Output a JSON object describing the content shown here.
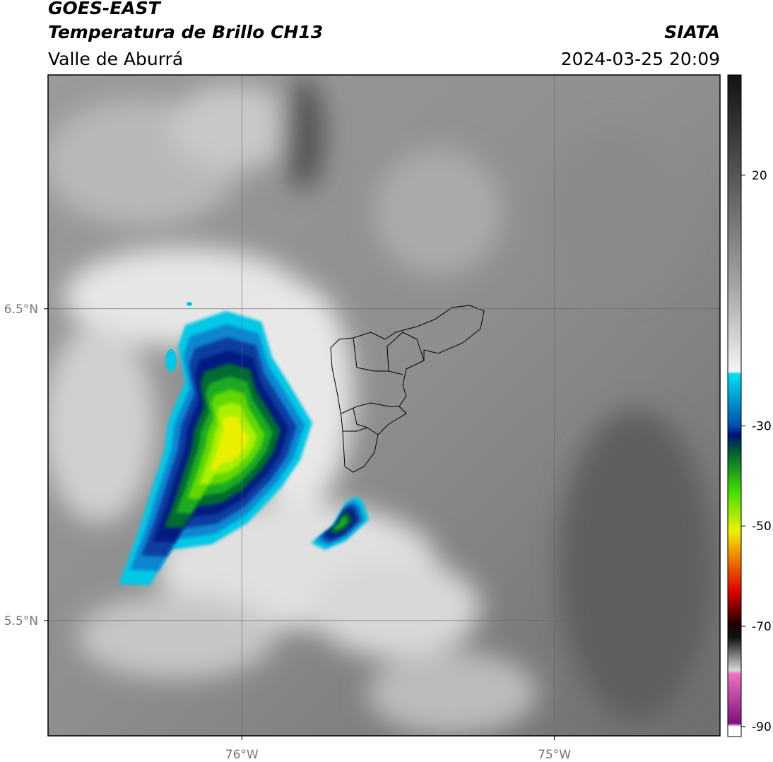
{
  "header": {
    "title": "GOES-EAST",
    "subtitle": "Temperatura de Brillo CH13",
    "region": "Valle de Aburrá",
    "source": "SIATA",
    "datetime": "2024-03-25 20:09"
  },
  "map": {
    "lonlim": [
      -76.62,
      -74.47
    ],
    "latlim": [
      5.13,
      7.25
    ],
    "lonticks": [
      {
        "value": -76,
        "label": "76°W"
      },
      {
        "value": -75,
        "label": "75°W"
      }
    ],
    "latticks": [
      {
        "value": 6.5,
        "label": "6.5°N"
      },
      {
        "value": 5.5,
        "label": "5.5°N"
      }
    ]
  },
  "colorbar": {
    "lim": [
      -92,
      40
    ],
    "ticks": [
      20,
      -30,
      -50,
      -70,
      -90
    ]
  }
}
